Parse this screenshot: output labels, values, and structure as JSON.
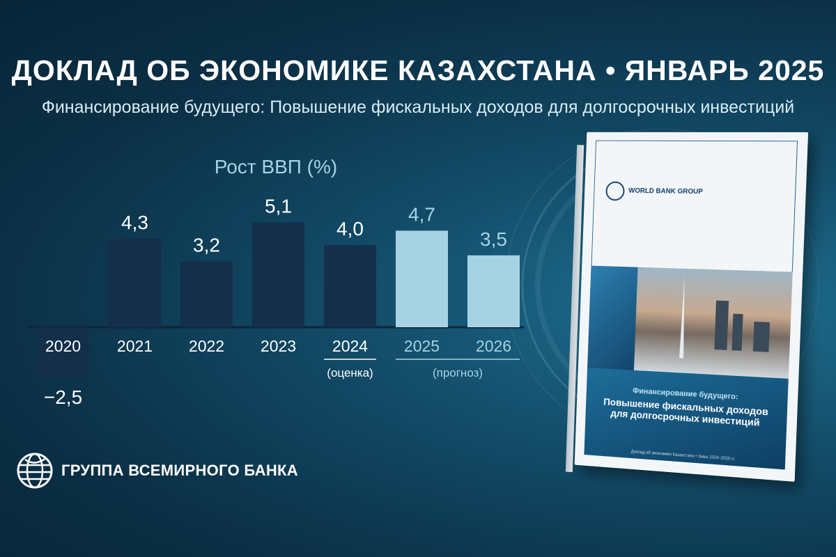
{
  "header": {
    "title": "ДОКЛАД ОБ ЭКОНОМИКЕ КАЗАХСТАНА  •  ЯНВАРЬ 2025",
    "subtitle": "Финансирование будущего: Повышение фискальных доходов для долгосрочных инвестиций"
  },
  "chart_data": {
    "type": "bar",
    "title": "Рост ВВП (%)",
    "categories": [
      "2020",
      "2021",
      "2022",
      "2023",
      "2024",
      "2025",
      "2026"
    ],
    "values": [
      -2.5,
      4.3,
      3.2,
      5.1,
      4.0,
      4.7,
      3.5
    ],
    "value_labels": [
      "−2,5",
      "4,3",
      "3,2",
      "5,1",
      "4,0",
      "4,7",
      "3,5"
    ],
    "annotations": [
      {
        "text": "(оценка)",
        "categories": [
          "2024"
        ]
      },
      {
        "text": "(прогноз)",
        "categories": [
          "2025",
          "2026"
        ]
      }
    ],
    "kinds": [
      "actual",
      "actual",
      "actual",
      "actual",
      "estimate",
      "forecast",
      "forecast"
    ],
    "colors": {
      "actual": "#132f4a",
      "estimate": "#132f4a",
      "forecast": "#a6d2e4",
      "actual_label": "#ffffff",
      "forecast_label": "#a6d2e4",
      "title": "#a6d2e4"
    },
    "xlabel": "",
    "ylabel": "",
    "ylim": [
      -2.5,
      5.1
    ],
    "grid": false,
    "legend": "none"
  },
  "logo": {
    "icon": "world-bank-globe-icon",
    "text": "ГРУППА ВСЕМИРНОГО БАНКА"
  },
  "book": {
    "logo_text": "WORLD BANK GROUP",
    "title_line1": "Финансирование будущего:",
    "title_line2": "Повышение фискальных доходов",
    "title_line3": "для долгосрочных инвестиций",
    "footer": "Доклад об экономике Казахстана • Зима 2024–2025 гг."
  }
}
